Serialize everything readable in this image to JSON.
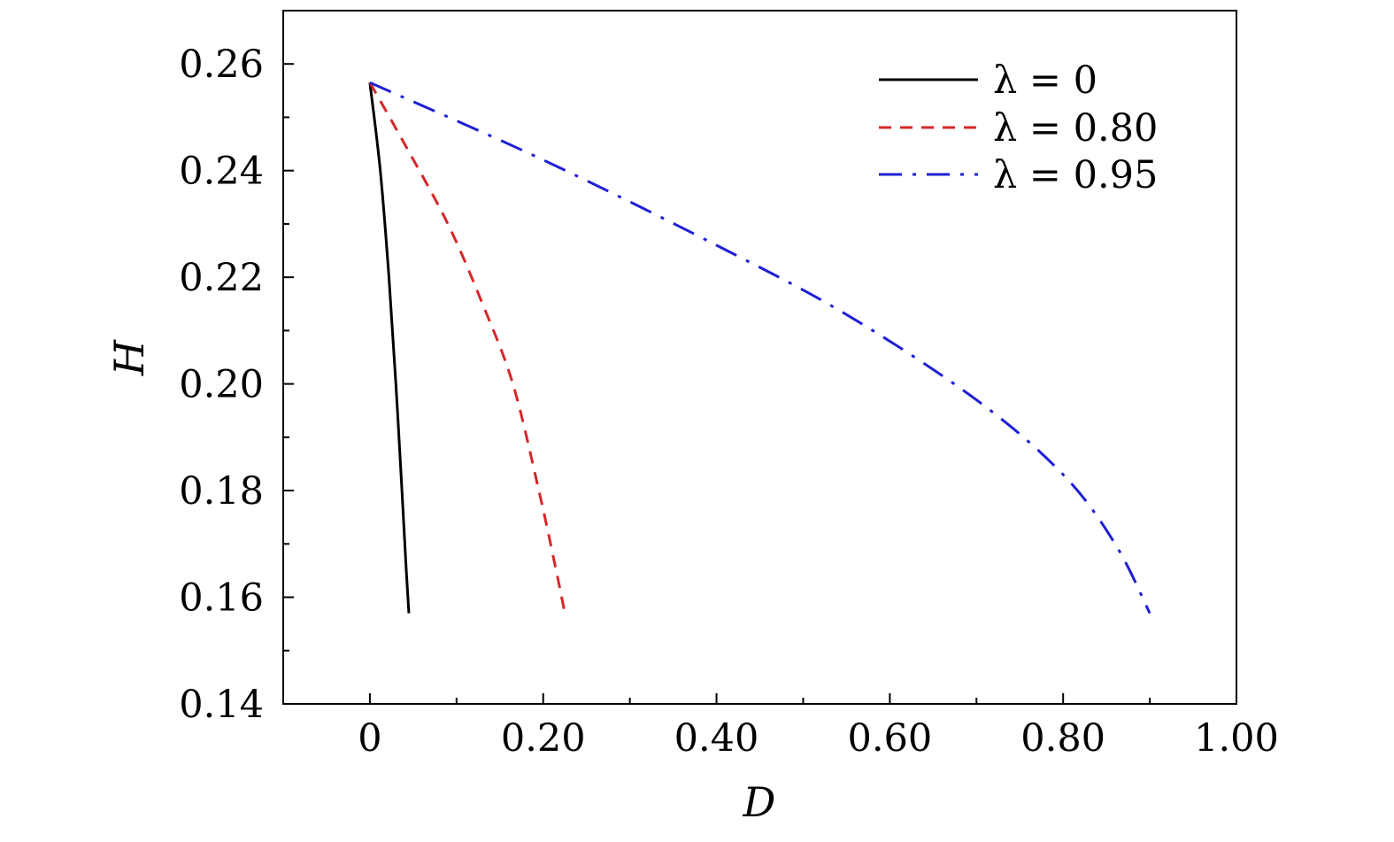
{
  "chart_data": {
    "type": "line",
    "title": "",
    "xlabel": "D",
    "ylabel": "H",
    "xlim": [
      -0.1,
      1.0
    ],
    "ylim": [
      0.14,
      0.27
    ],
    "x_ticks": [
      0,
      0.2,
      0.4,
      0.6,
      0.8,
      1.0
    ],
    "x_tick_labels": [
      "0",
      "0.20",
      "0.40",
      "0.60",
      "0.80",
      "1.00"
    ],
    "y_ticks": [
      0.14,
      0.16,
      0.18,
      0.2,
      0.22,
      0.24,
      0.26
    ],
    "y_tick_labels": [
      "0.14",
      "0.16",
      "0.18",
      "0.20",
      "0.22",
      "0.24",
      "0.26"
    ],
    "grid": false,
    "legend_position": "top-right",
    "series": [
      {
        "name": "λ = 0",
        "color": "#000000",
        "dash": "solid",
        "x": [
          0.0,
          0.012,
          0.022,
          0.03,
          0.037,
          0.042,
          0.045
        ],
        "y": [
          0.2565,
          0.24,
          0.22,
          0.2,
          0.18,
          0.165,
          0.157
        ]
      },
      {
        "name": "λ = 0.80",
        "color": "#d62728",
        "dash": "dashed",
        "x": [
          0.0,
          0.04,
          0.09,
          0.13,
          0.165,
          0.195,
          0.215,
          0.225
        ],
        "y": [
          0.2565,
          0.245,
          0.23,
          0.215,
          0.2,
          0.18,
          0.165,
          0.157
        ]
      },
      {
        "name": "λ = 0.95",
        "color": "#1f1fd6",
        "dash": "dashdot",
        "x": [
          0.0,
          0.2,
          0.4,
          0.55,
          0.7,
          0.8,
          0.86,
          0.9
        ],
        "y": [
          0.2565,
          0.242,
          0.226,
          0.213,
          0.197,
          0.183,
          0.17,
          0.157
        ]
      }
    ]
  }
}
